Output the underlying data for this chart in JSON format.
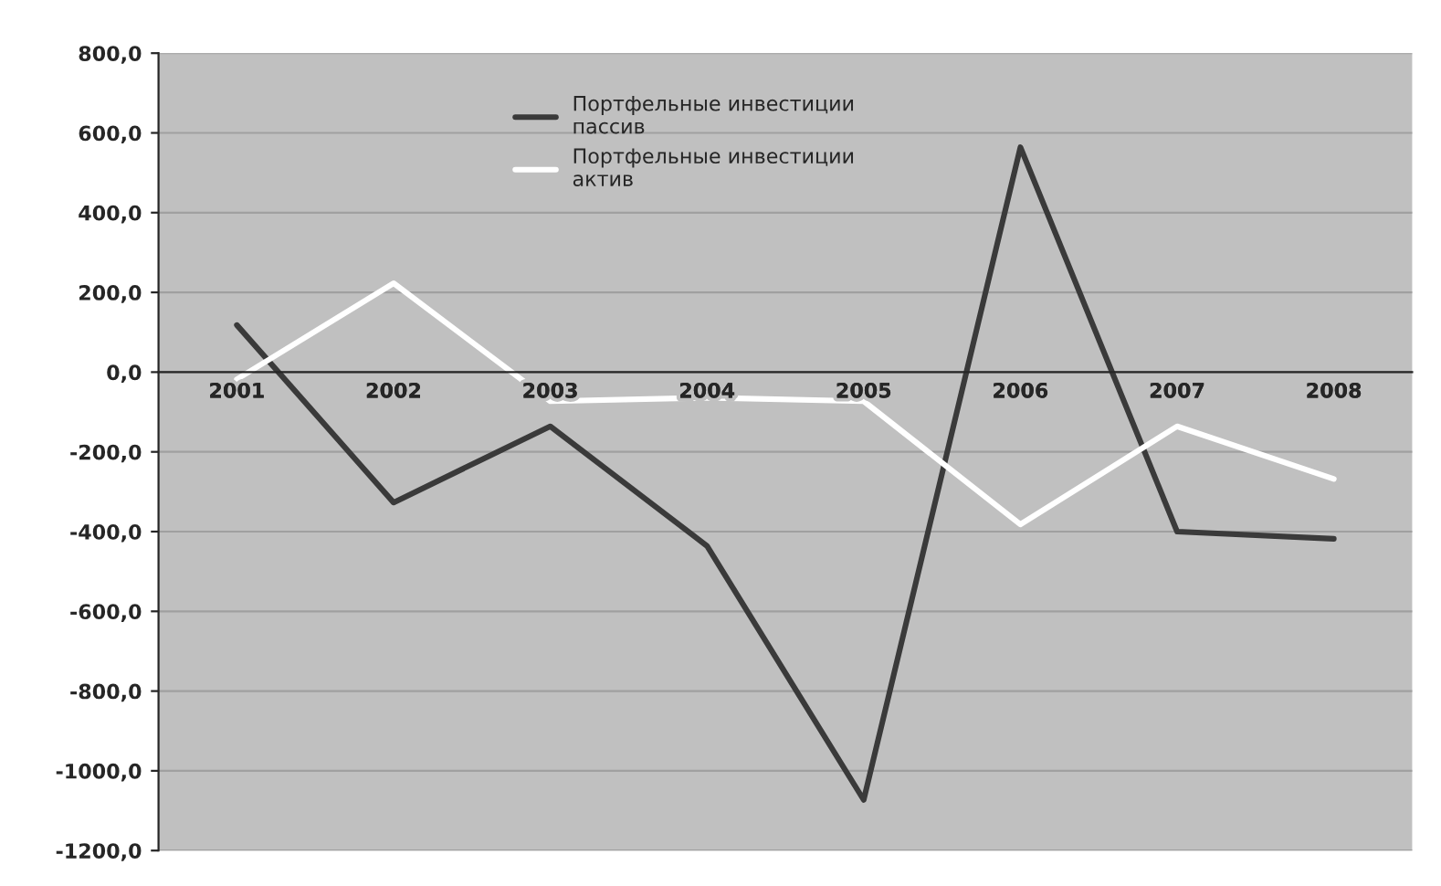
{
  "chart_data": {
    "type": "line",
    "categories": [
      "2001",
      "2002",
      "2003",
      "2004",
      "2005",
      "2006",
      "2007",
      "2008"
    ],
    "series": [
      {
        "name": "Портфельные инвестиции пассив",
        "color": "#3a3a3a",
        "values": [
          118,
          -327,
          -136,
          -436,
          -1073,
          564,
          -400,
          -418
        ]
      },
      {
        "name": "Портфельные инвестиции актив",
        "color": "#ffffff",
        "values": [
          -18,
          223,
          -73,
          -64,
          -73,
          -382,
          -136,
          -268
        ]
      }
    ],
    "ylim": [
      -1200,
      800
    ],
    "yticks": [
      {
        "value": 800,
        "label": "800,0"
      },
      {
        "value": 600,
        "label": "600,0"
      },
      {
        "value": 400,
        "label": "400,0"
      },
      {
        "value": 200,
        "label": "200,0"
      },
      {
        "value": 0,
        "label": "0,0"
      },
      {
        "value": -200,
        "label": "-200,0"
      },
      {
        "value": -400,
        "label": "-400,0"
      },
      {
        "value": -600,
        "label": "-600,0"
      },
      {
        "value": -800,
        "label": "-800,0"
      },
      {
        "value": -1000,
        "label": "-1000,0"
      },
      {
        "value": -1200,
        "label": "-1200,0"
      }
    ],
    "grid": "y",
    "legend": "top",
    "marker": "none",
    "line_style": "solid"
  }
}
